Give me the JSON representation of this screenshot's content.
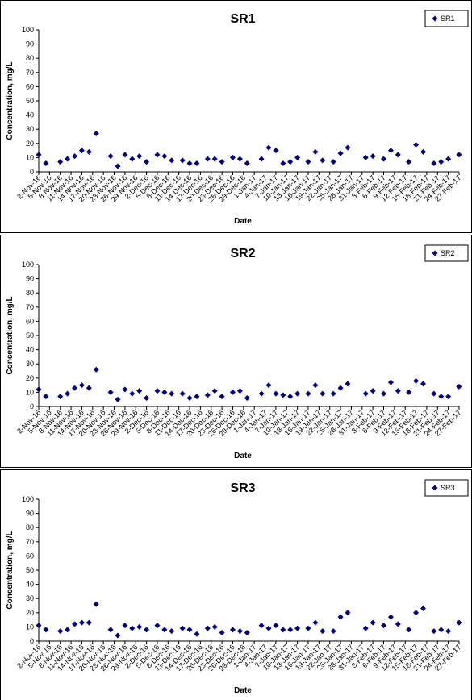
{
  "chart_data": [
    {
      "type": "scatter",
      "title": "SR1",
      "x_label": "Date",
      "y_label": "Concentration, mg/L",
      "legend": "top-right",
      "x": [
        "2016-11-02",
        "2016-11-04",
        "2016-11-08",
        "2016-11-10",
        "2016-11-12",
        "2016-11-14",
        "2016-11-16",
        "2016-11-18",
        "2016-11-22",
        "2016-11-24",
        "2016-11-26",
        "2016-11-28",
        "2016-11-30",
        "2016-12-02",
        "2016-12-05",
        "2016-12-07",
        "2016-12-09",
        "2016-12-12",
        "2016-12-14",
        "2016-12-16",
        "2016-12-19",
        "2016-12-21",
        "2016-12-23",
        "2016-12-26",
        "2016-12-28",
        "2016-12-30",
        "2017-01-03",
        "2017-01-05",
        "2017-01-07",
        "2017-01-09",
        "2017-01-11",
        "2017-01-13",
        "2017-01-16",
        "2017-01-18",
        "2017-01-20",
        "2017-01-23",
        "2017-01-25",
        "2017-01-27",
        "2017-02-01",
        "2017-02-03",
        "2017-02-06",
        "2017-02-08",
        "2017-02-10",
        "2017-02-13",
        "2017-02-15",
        "2017-02-17",
        "2017-02-20",
        "2017-02-22",
        "2017-02-24",
        "2017-02-27"
      ],
      "series": [
        {
          "name": "SR1",
          "color": "#000080",
          "values": [
            12,
            6,
            7,
            9,
            11,
            15,
            14,
            27,
            11,
            4,
            12,
            9,
            11,
            7,
            12,
            11,
            8,
            8,
            6,
            6,
            9,
            9,
            7,
            10,
            9,
            6,
            9,
            17,
            15,
            6,
            7,
            10,
            7,
            14,
            8,
            7,
            13,
            17,
            10,
            11,
            9,
            15,
            12,
            7,
            19,
            14,
            6,
            7,
            9,
            12
          ]
        }
      ],
      "ylim": [
        0,
        100
      ],
      "yticks": [
        0,
        10,
        20,
        30,
        40,
        50,
        60,
        70,
        80,
        90,
        100
      ],
      "xlim": [
        "2016-11-02",
        "2017-02-27"
      ],
      "xticks": [
        {
          "value": "2016-11-02",
          "label": "2-Nov-16"
        },
        {
          "value": "2016-11-05",
          "label": "5-Nov-16"
        },
        {
          "value": "2016-11-08",
          "label": "8-Nov-16"
        },
        {
          "value": "2016-11-11",
          "label": "11-Nov-16"
        },
        {
          "value": "2016-11-14",
          "label": "14-Nov-16"
        },
        {
          "value": "2016-11-17",
          "label": "17-Nov-16"
        },
        {
          "value": "2016-11-20",
          "label": "20-Nov-16"
        },
        {
          "value": "2016-11-23",
          "label": "23-Nov-16"
        },
        {
          "value": "2016-11-26",
          "label": "26-Nov-16"
        },
        {
          "value": "2016-11-29",
          "label": "29-Nov-16"
        },
        {
          "value": "2016-12-02",
          "label": "2-Dec-16"
        },
        {
          "value": "2016-12-05",
          "label": "5-Dec-16"
        },
        {
          "value": "2016-12-08",
          "label": "8-Dec-16"
        },
        {
          "value": "2016-12-11",
          "label": "11-Dec-16"
        },
        {
          "value": "2016-12-14",
          "label": "14-Dec-16"
        },
        {
          "value": "2016-12-17",
          "label": "17-Dec-16"
        },
        {
          "value": "2016-12-20",
          "label": "20-Dec-16"
        },
        {
          "value": "2016-12-23",
          "label": "23-Dec-16"
        },
        {
          "value": "2016-12-26",
          "label": "26-Dec-16"
        },
        {
          "value": "2016-12-29",
          "label": "29-Dec-16"
        },
        {
          "value": "2017-01-01",
          "label": "1-Jan-17"
        },
        {
          "value": "2017-01-04",
          "label": "4-Jan-17"
        },
        {
          "value": "2017-01-07",
          "label": "7-Jan-17"
        },
        {
          "value": "2017-01-10",
          "label": "10-Jan-17"
        },
        {
          "value": "2017-01-13",
          "label": "13-Jan-17"
        },
        {
          "value": "2017-01-16",
          "label": "16-Jan-17"
        },
        {
          "value": "2017-01-19",
          "label": "19-Jan-17"
        },
        {
          "value": "2017-01-22",
          "label": "22-Jan-17"
        },
        {
          "value": "2017-01-25",
          "label": "25-Jan-17"
        },
        {
          "value": "2017-01-28",
          "label": "28-Jan-17"
        },
        {
          "value": "2017-01-31",
          "label": "31-Jan-17"
        },
        {
          "value": "2017-02-03",
          "label": "3-Feb-17"
        },
        {
          "value": "2017-02-06",
          "label": "6-Feb-17"
        },
        {
          "value": "2017-02-09",
          "label": "9-Feb-17"
        },
        {
          "value": "2017-02-12",
          "label": "12-Feb-17"
        },
        {
          "value": "2017-02-15",
          "label": "15-Feb-17"
        },
        {
          "value": "2017-02-18",
          "label": "18-Feb-17"
        },
        {
          "value": "2017-02-21",
          "label": "21-Feb-17"
        },
        {
          "value": "2017-02-24",
          "label": "24-Feb-17"
        },
        {
          "value": "2017-02-27",
          "label": "27-Feb-17"
        }
      ]
    },
    {
      "type": "scatter",
      "title": "SR2",
      "x_label": "Date",
      "y_label": "Concentration, mg/L",
      "legend": "top-right",
      "x": [
        "2016-11-02",
        "2016-11-04",
        "2016-11-08",
        "2016-11-10",
        "2016-11-12",
        "2016-11-14",
        "2016-11-16",
        "2016-11-18",
        "2016-11-22",
        "2016-11-24",
        "2016-11-26",
        "2016-11-28",
        "2016-11-30",
        "2016-12-02",
        "2016-12-05",
        "2016-12-07",
        "2016-12-09",
        "2016-12-12",
        "2016-12-14",
        "2016-12-16",
        "2016-12-19",
        "2016-12-21",
        "2016-12-23",
        "2016-12-26",
        "2016-12-28",
        "2016-12-30",
        "2017-01-03",
        "2017-01-05",
        "2017-01-07",
        "2017-01-09",
        "2017-01-11",
        "2017-01-13",
        "2017-01-16",
        "2017-01-18",
        "2017-01-20",
        "2017-01-23",
        "2017-01-25",
        "2017-01-27",
        "2017-02-01",
        "2017-02-03",
        "2017-02-06",
        "2017-02-08",
        "2017-02-10",
        "2017-02-13",
        "2017-02-15",
        "2017-02-17",
        "2017-02-20",
        "2017-02-22",
        "2017-02-24",
        "2017-02-27"
      ],
      "series": [
        {
          "name": "SR2",
          "color": "#000080",
          "values": [
            12,
            7,
            7,
            9,
            13,
            15,
            13,
            26,
            10,
            5,
            12,
            9,
            11,
            6,
            11,
            10,
            9,
            9,
            6,
            7,
            8,
            11,
            7,
            10,
            11,
            6,
            9,
            15,
            9,
            8,
            7,
            9,
            9,
            15,
            9,
            9,
            13,
            16,
            9,
            11,
            9,
            17,
            11,
            10,
            18,
            16,
            9,
            7,
            7,
            14
          ]
        }
      ],
      "ylim": [
        0,
        100
      ],
      "yticks": [
        0,
        10,
        20,
        30,
        40,
        50,
        60,
        70,
        80,
        90,
        100
      ],
      "xlim": [
        "2016-11-02",
        "2017-02-27"
      ],
      "xticks": [
        {
          "value": "2016-11-02",
          "label": "2-Nov-16"
        },
        {
          "value": "2016-11-05",
          "label": "5-Nov-16"
        },
        {
          "value": "2016-11-08",
          "label": "8-Nov-16"
        },
        {
          "value": "2016-11-11",
          "label": "11-Nov-16"
        },
        {
          "value": "2016-11-14",
          "label": "14-Nov-16"
        },
        {
          "value": "2016-11-17",
          "label": "17-Nov-16"
        },
        {
          "value": "2016-11-20",
          "label": "20-Nov-16"
        },
        {
          "value": "2016-11-23",
          "label": "23-Nov-16"
        },
        {
          "value": "2016-11-26",
          "label": "26-Nov-16"
        },
        {
          "value": "2016-11-29",
          "label": "29-Nov-16"
        },
        {
          "value": "2016-12-02",
          "label": "2-Dec-16"
        },
        {
          "value": "2016-12-05",
          "label": "5-Dec-16"
        },
        {
          "value": "2016-12-08",
          "label": "8-Dec-16"
        },
        {
          "value": "2016-12-11",
          "label": "11-Dec-16"
        },
        {
          "value": "2016-12-14",
          "label": "14-Dec-16"
        },
        {
          "value": "2016-12-17",
          "label": "17-Dec-16"
        },
        {
          "value": "2016-12-20",
          "label": "20-Dec-16"
        },
        {
          "value": "2016-12-23",
          "label": "23-Dec-16"
        },
        {
          "value": "2016-12-26",
          "label": "26-Dec-16"
        },
        {
          "value": "2016-12-29",
          "label": "29-Dec-16"
        },
        {
          "value": "2017-01-01",
          "label": "1-Jan-17"
        },
        {
          "value": "2017-01-04",
          "label": "4-Jan-17"
        },
        {
          "value": "2017-01-07",
          "label": "7-Jan-17"
        },
        {
          "value": "2017-01-10",
          "label": "10-Jan-17"
        },
        {
          "value": "2017-01-13",
          "label": "13-Jan-17"
        },
        {
          "value": "2017-01-16",
          "label": "16-Jan-17"
        },
        {
          "value": "2017-01-19",
          "label": "19-Jan-17"
        },
        {
          "value": "2017-01-22",
          "label": "22-Jan-17"
        },
        {
          "value": "2017-01-25",
          "label": "25-Jan-17"
        },
        {
          "value": "2017-01-28",
          "label": "28-Jan-17"
        },
        {
          "value": "2017-01-31",
          "label": "31-Jan-17"
        },
        {
          "value": "2017-02-03",
          "label": "3-Feb-17"
        },
        {
          "value": "2017-02-06",
          "label": "6-Feb-17"
        },
        {
          "value": "2017-02-09",
          "label": "9-Feb-17"
        },
        {
          "value": "2017-02-12",
          "label": "12-Feb-17"
        },
        {
          "value": "2017-02-15",
          "label": "15-Feb-17"
        },
        {
          "value": "2017-02-18",
          "label": "18-Feb-17"
        },
        {
          "value": "2017-02-21",
          "label": "21-Feb-17"
        },
        {
          "value": "2017-02-24",
          "label": "24-Feb-17"
        },
        {
          "value": "2017-02-27",
          "label": "27-Feb-17"
        }
      ]
    },
    {
      "type": "scatter",
      "title": "SR3",
      "x_label": "Date",
      "y_label": "Concentration, mg/L",
      "legend": "top-right",
      "x": [
        "2016-11-02",
        "2016-11-04",
        "2016-11-08",
        "2016-11-10",
        "2016-11-12",
        "2016-11-14",
        "2016-11-16",
        "2016-11-18",
        "2016-11-22",
        "2016-11-24",
        "2016-11-26",
        "2016-11-28",
        "2016-11-30",
        "2016-12-02",
        "2016-12-05",
        "2016-12-07",
        "2016-12-09",
        "2016-12-12",
        "2016-12-14",
        "2016-12-16",
        "2016-12-19",
        "2016-12-21",
        "2016-12-23",
        "2016-12-26",
        "2016-12-28",
        "2016-12-30",
        "2017-01-03",
        "2017-01-05",
        "2017-01-07",
        "2017-01-09",
        "2017-01-11",
        "2017-01-13",
        "2017-01-16",
        "2017-01-18",
        "2017-01-20",
        "2017-01-23",
        "2017-01-25",
        "2017-01-27",
        "2017-02-01",
        "2017-02-03",
        "2017-02-06",
        "2017-02-08",
        "2017-02-10",
        "2017-02-13",
        "2017-02-15",
        "2017-02-17",
        "2017-02-20",
        "2017-02-22",
        "2017-02-24",
        "2017-02-27"
      ],
      "series": [
        {
          "name": "SR3",
          "color": "#000080",
          "values": [
            11,
            8,
            7,
            8,
            12,
            13,
            13,
            26,
            8,
            4,
            11,
            9,
            10,
            8,
            11,
            8,
            7,
            9,
            8,
            5,
            9,
            10,
            6,
            8,
            7,
            6,
            11,
            9,
            11,
            8,
            8,
            9,
            9,
            13,
            7,
            7,
            17,
            20,
            9,
            13,
            11,
            17,
            12,
            8,
            20,
            23,
            7,
            8,
            7,
            13
          ]
        }
      ],
      "ylim": [
        0,
        100
      ],
      "yticks": [
        0,
        10,
        20,
        30,
        40,
        50,
        60,
        70,
        80,
        90,
        100
      ],
      "xlim": [
        "2016-11-02",
        "2017-02-27"
      ],
      "xticks": [
        {
          "value": "2016-11-02",
          "label": "2-Nov-16"
        },
        {
          "value": "2016-11-05",
          "label": "5-Nov-16"
        },
        {
          "value": "2016-11-08",
          "label": "8-Nov-16"
        },
        {
          "value": "2016-11-11",
          "label": "11-Nov-16"
        },
        {
          "value": "2016-11-14",
          "label": "14-Nov-16"
        },
        {
          "value": "2016-11-17",
          "label": "17-Nov-16"
        },
        {
          "value": "2016-11-20",
          "label": "20-Nov-16"
        },
        {
          "value": "2016-11-23",
          "label": "23-Nov-16"
        },
        {
          "value": "2016-11-26",
          "label": "26-Nov-16"
        },
        {
          "value": "2016-11-29",
          "label": "29-Nov-16"
        },
        {
          "value": "2016-12-02",
          "label": "2-Dec-16"
        },
        {
          "value": "2016-12-05",
          "label": "5-Dec-16"
        },
        {
          "value": "2016-12-08",
          "label": "8-Dec-16"
        },
        {
          "value": "2016-12-11",
          "label": "11-Dec-16"
        },
        {
          "value": "2016-12-14",
          "label": "14-Dec-16"
        },
        {
          "value": "2016-12-17",
          "label": "17-Dec-16"
        },
        {
          "value": "2016-12-20",
          "label": "20-Dec-16"
        },
        {
          "value": "2016-12-23",
          "label": "23-Dec-16"
        },
        {
          "value": "2016-12-26",
          "label": "26-Dec-16"
        },
        {
          "value": "2016-12-29",
          "label": "29-Dec-16"
        },
        {
          "value": "2017-01-01",
          "label": "1-Jan-17"
        },
        {
          "value": "2017-01-04",
          "label": "4-Jan-17"
        },
        {
          "value": "2017-01-07",
          "label": "7-Jan-17"
        },
        {
          "value": "2017-01-10",
          "label": "10-Jan-17"
        },
        {
          "value": "2017-01-13",
          "label": "13-Jan-17"
        },
        {
          "value": "2017-01-16",
          "label": "16-Jan-17"
        },
        {
          "value": "2017-01-19",
          "label": "19-Jan-17"
        },
        {
          "value": "2017-01-22",
          "label": "22-Jan-17"
        },
        {
          "value": "2017-01-25",
          "label": "25-Jan-17"
        },
        {
          "value": "2017-01-28",
          "label": "28-Jan-17"
        },
        {
          "value": "2017-01-31",
          "label": "31-Jan-17"
        },
        {
          "value": "2017-02-03",
          "label": "3-Feb-17"
        },
        {
          "value": "2017-02-06",
          "label": "6-Feb-17"
        },
        {
          "value": "2017-02-09",
          "label": "9-Feb-17"
        },
        {
          "value": "2017-02-12",
          "label": "12-Feb-17"
        },
        {
          "value": "2017-02-15",
          "label": "15-Feb-17"
        },
        {
          "value": "2017-02-18",
          "label": "18-Feb-17"
        },
        {
          "value": "2017-02-21",
          "label": "21-Feb-17"
        },
        {
          "value": "2017-02-24",
          "label": "24-Feb-17"
        },
        {
          "value": "2017-02-27",
          "label": "27-Feb-17"
        }
      ]
    }
  ]
}
